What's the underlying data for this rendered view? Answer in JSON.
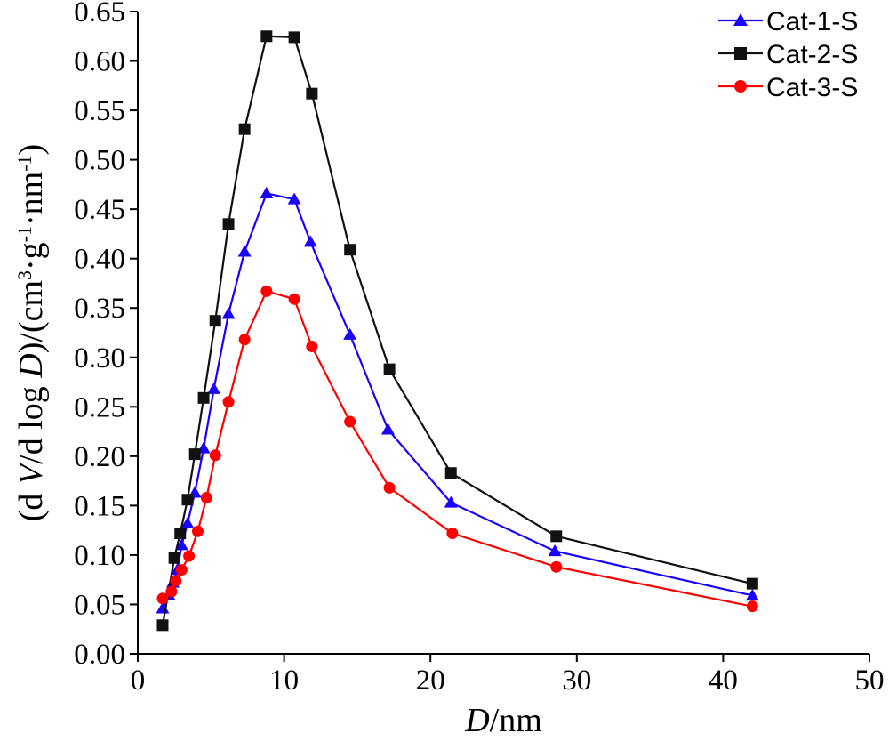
{
  "chart_data": {
    "type": "line",
    "xlabel": {
      "italic": "D",
      "rest": "/nm"
    },
    "ylabel": {
      "parts": [
        {
          "t": "(d ",
          "s": "normal"
        },
        {
          "t": "V",
          "s": "italic"
        },
        {
          "t": "/d log ",
          "s": "normal"
        },
        {
          "t": "D",
          "s": "italic"
        },
        {
          "t": ")/(cm",
          "s": "normal"
        },
        {
          "t": "3",
          "s": "sup"
        },
        {
          "t": "·g",
          "s": "normal"
        },
        {
          "t": "-1",
          "s": "sup"
        },
        {
          "t": "·nm",
          "s": "normal"
        },
        {
          "t": "-1",
          "s": "sup"
        },
        {
          "t": ")",
          "s": "normal"
        }
      ]
    },
    "xlim": [
      0,
      50
    ],
    "ylim": [
      0,
      0.65
    ],
    "xticks": [
      "0",
      "10",
      "20",
      "30",
      "40",
      "50"
    ],
    "yticks": [
      "0.00",
      "0.05",
      "0.10",
      "0.15",
      "0.20",
      "0.25",
      "0.30",
      "0.35",
      "0.40",
      "0.45",
      "0.50",
      "0.55",
      "0.60",
      "0.65"
    ],
    "legend_position": "top-right",
    "grid": false,
    "series": [
      {
        "name": "Cat-1-S",
        "color": "#1a00ff",
        "marker": "triangle",
        "x": [
          1.7,
          2.1,
          2.4,
          2.7,
          3.0,
          3.4,
          3.9,
          4.5,
          5.2,
          6.2,
          7.3,
          8.8,
          10.7,
          11.8,
          14.5,
          17.1,
          21.4,
          28.5,
          42.0
        ],
        "y": [
          0.046,
          0.06,
          0.072,
          0.085,
          0.11,
          0.132,
          0.163,
          0.208,
          0.268,
          0.344,
          0.407,
          0.466,
          0.46,
          0.417,
          0.323,
          0.227,
          0.153,
          0.104,
          0.059
        ]
      },
      {
        "name": "Cat-2-S",
        "color": "#111111",
        "marker": "square",
        "x": [
          1.7,
          2.5,
          2.9,
          3.4,
          3.9,
          4.5,
          5.3,
          6.2,
          7.3,
          8.8,
          10.7,
          11.9,
          14.5,
          17.2,
          21.4,
          28.6,
          42.0
        ],
        "y": [
          0.029,
          0.097,
          0.122,
          0.156,
          0.202,
          0.259,
          0.337,
          0.435,
          0.531,
          0.625,
          0.624,
          0.567,
          0.409,
          0.288,
          0.183,
          0.119,
          0.071
        ]
      },
      {
        "name": "Cat-3-S",
        "color": "#ff0000",
        "marker": "circle",
        "x": [
          1.7,
          2.3,
          2.6,
          3.0,
          3.5,
          4.1,
          4.7,
          5.3,
          6.2,
          7.3,
          8.8,
          10.7,
          11.9,
          14.5,
          17.2,
          21.5,
          28.6,
          42.0
        ],
        "y": [
          0.056,
          0.063,
          0.074,
          0.085,
          0.099,
          0.124,
          0.158,
          0.201,
          0.255,
          0.318,
          0.367,
          0.359,
          0.311,
          0.235,
          0.168,
          0.122,
          0.088,
          0.048
        ]
      }
    ]
  }
}
